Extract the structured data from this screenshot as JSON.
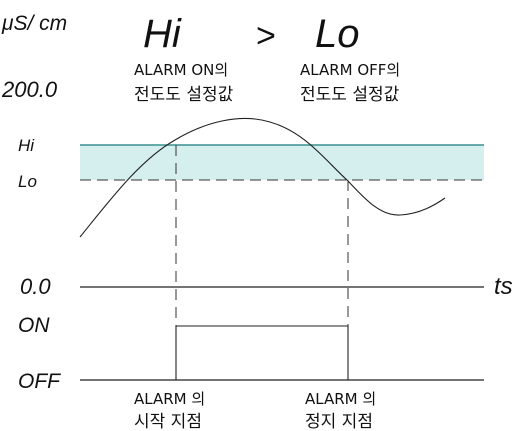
{
  "axis": {
    "unit_label": "μS/ cm",
    "y_max_label": "200.0",
    "hi_label": "Hi",
    "lo_label": "Lo",
    "y_zero_label": "0.0",
    "time_label": "ts"
  },
  "heading": {
    "hi": "Hi",
    "operator": ">",
    "lo": "Lo"
  },
  "annotations": {
    "alarm_on_line1": "ALARM ON의",
    "alarm_on_line2": "전도도 설정값",
    "alarm_off_line1": "ALARM OFF의",
    "alarm_off_line2": "전도도 설정값",
    "alarm_start_line1": "ALARM 의",
    "alarm_start_line2": "시작 지점",
    "alarm_stop_line1": "ALARM 의",
    "alarm_stop_line2": "정지 지점"
  },
  "signal": {
    "on_label": "ON",
    "off_label": "OFF"
  },
  "colors": {
    "band_fill": "#d4efee",
    "band_edge": "#3a8f8f",
    "line": "#222222"
  }
}
